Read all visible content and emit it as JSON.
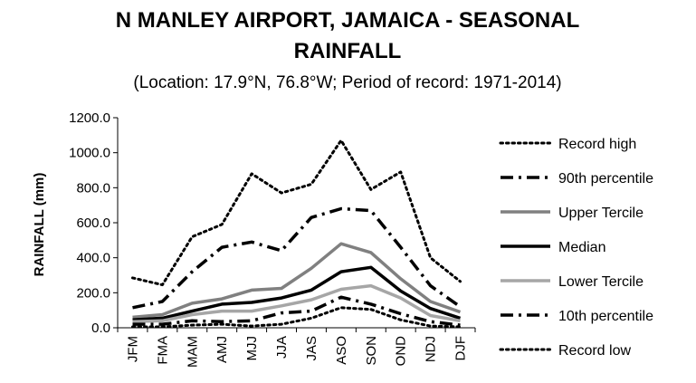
{
  "chart_data": {
    "type": "line",
    "title_line1": "N MANLEY AIRPORT, JAMAICA - SEASONAL",
    "title_line2": "RAINFALL",
    "subtitle": "(Location: 17.9°N, 76.8°W; Period of record: 1971-2014)",
    "xlabel": "",
    "ylabel": "RAINFALL (mm)",
    "ylim": [
      0,
      1200
    ],
    "ytick_labels": [
      "0.0",
      "200.0",
      "400.0",
      "600.0",
      "800.0",
      "1000.0",
      "1200.0"
    ],
    "categories": [
      "JFM",
      "FMA",
      "MAM",
      "AMJ",
      "MJJ",
      "JJA",
      "JAS",
      "ASO",
      "SON",
      "OND",
      "NDJ",
      "DJF"
    ],
    "legend_position": "right",
    "grid": false,
    "series": [
      {
        "name": "Record high",
        "style": "dotted-black",
        "values": [
          285,
          245,
          520,
          590,
          880,
          770,
          820,
          1070,
          790,
          890,
          400,
          265
        ]
      },
      {
        "name": "90th percentile",
        "style": "dashdot-black",
        "values": [
          115,
          150,
          320,
          460,
          490,
          440,
          630,
          680,
          670,
          460,
          240,
          120
        ]
      },
      {
        "name": "Upper Tercile",
        "style": "solid-darkgray",
        "values": [
          60,
          75,
          140,
          165,
          215,
          225,
          340,
          480,
          430,
          280,
          150,
          90
        ]
      },
      {
        "name": "Median",
        "style": "solid-black",
        "values": [
          45,
          55,
          95,
          135,
          145,
          170,
          215,
          320,
          345,
          210,
          110,
          55
        ]
      },
      {
        "name": "Lower Tercile",
        "style": "solid-lightgray",
        "values": [
          35,
          40,
          75,
          95,
          95,
          125,
          160,
          220,
          240,
          170,
          70,
          40
        ]
      },
      {
        "name": "10th percentile",
        "style": "dashdot-black",
        "values": [
          20,
          20,
          40,
          35,
          40,
          85,
          95,
          175,
          135,
          80,
          35,
          15
        ]
      },
      {
        "name": "Record low",
        "style": "dotted-black",
        "values": [
          5,
          5,
          15,
          20,
          10,
          20,
          55,
          115,
          105,
          45,
          10,
          5
        ]
      }
    ],
    "colors": {
      "black": "#000000",
      "darkgray": "#808080",
      "lightgray": "#a6a6a6"
    }
  }
}
